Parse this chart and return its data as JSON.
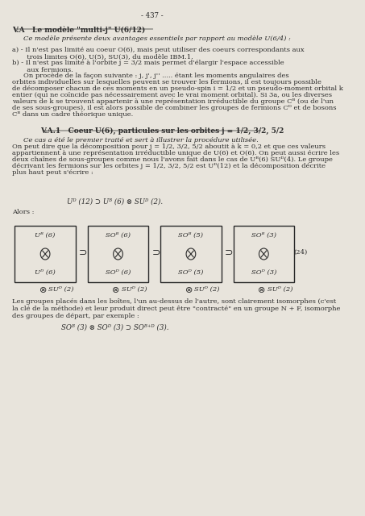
{
  "page_number": "- 437 -",
  "background_color": "#e8e4dc",
  "text_color": "#2a2a2a",
  "section_title": "V.A   Le modèle \"multi-j\" U(6/12)",
  "paragraph1": "Ce modèle présente deux avantages essentiels par rapport au modèle U(6/4) :",
  "item_a": "a) - Il n'est pas limité au coeur O(6), mais peut utiliser des coeurs correspondants aux\n       trois limites O(6), U(5), SU(3), du modèle IBM.1.",
  "item_b": "b) - Il n'est pas limité à l'orbite j = 3/2 mais permet d'élargir l'espace accessible\n       aux fermions.",
  "paragraph2": "On procède de la façon suivante : j, j', j'' ..... étant les moments angulaires des\norbites individuelles sur lesquelles peuvent se trouver les fermions, il est toujours possible\nde décomposer chacun de ces moments en un pseudo-spin i = 1/2 et un pseudo-moment orbital k\nentier (qui ne coïncide pas nécessairement avec le vrai moment orbital). Si 3a, ou les diverses\nvaleurs de k se trouvent appartenir à une représentation irréductible du groupe Cᴮ (ou de l'un\nde ses sous-groupes), il est alors possible de combiner les groupes de fermions Cᴰ et de bosons\nCᴮ dans un cadre théorique unique.",
  "subsection": "V.A.1   Coeur U(6), particules sur les orbites j = 1/2, 3/2, 5/2",
  "paragraph3": "Ce cas a été le premier traité et sert à illustrer la procédure utilisée.\nOn peut dire que la décomposition pour j = 1/2, 3/2, 5/2 aboutit à k = 0,2 et que ces valeurs\nappartiennent à une représentation irréductible unique de U(6) et O(6). On peut aussi écrire les\ndeux chaînes de sous-groupes comme nous l'avons fait dans le cas de Uᴮ(6) SUᴰ(4). Le groupe\ndécrivant les fermions sur les orbites j = 1/2, 3/2, 5/2 est Uᴰ(12) et la décomposition décrite\nplus haut peut s'écrire :",
  "formula1": "Uᴰ (12) ⊃ Uᴮ (6) ⊗ SUᴰ (2).",
  "alors_label": "Alors :",
  "equation_number": "(24)",
  "boxes": [
    {
      "top": "Uᴮ (6)",
      "bottom": "Uᴰ (6)",
      "sub": "⊗ SUᴰ (2)"
    },
    {
      "top": "SOᴮ (6)",
      "bottom": "SOᴰ (6)",
      "sub": "⊗ SUᴰ (2)"
    },
    {
      "top": "SOᴮ (5)",
      "bottom": "SOᴰ (5)",
      "sub": "⊗ SUᴰ (2)"
    },
    {
      "top": "SOᴮ (3)",
      "bottom": "SOᴰ (3)",
      "sub": "⊗ SUᴰ (2)"
    }
  ],
  "paragraph4": "Les groupes placés dans les boîtes, l'un au-dessus de l'autre, sont clairement isomorphes (c'est\nla clé de la méthode) et leur produit direct peut être \"contracté\" en un groupe N + F, isomorphe\ndes groupes de départ, par exemple :",
  "formula2": "SOᴮ (3) ⊗ SOᴰ (3) ⊃ SOᴮ⁺ᴰ (3)."
}
